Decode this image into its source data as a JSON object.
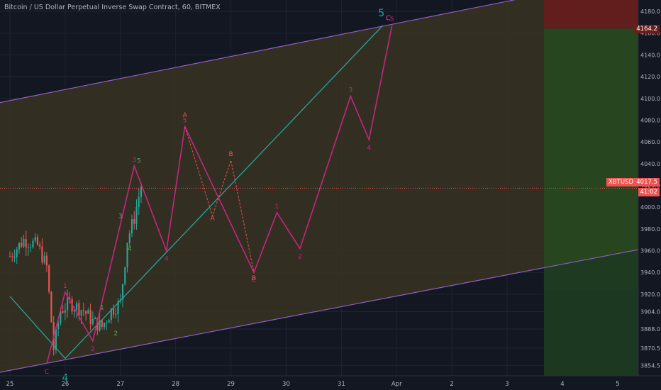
{
  "header": {
    "title": "Bitcoin / US Dollar Perpetual Inverse Swap Contract, 60, BITMEX"
  },
  "price_axis": {
    "ticks": [
      "4180.0",
      "4160.0",
      "4140.0",
      "4120.0",
      "4100.0",
      "4080.0",
      "4060.0",
      "4040.0",
      "4020.0",
      "4000.0",
      "3980.0",
      "3960.0",
      "3940.0",
      "3920.0",
      "3904.0",
      "3888.0",
      "3870.5",
      "3854.5"
    ],
    "current_price": "4017.5",
    "current_symbol": "XBTUSD",
    "countdown": "41:02",
    "target_price": "4164.2"
  },
  "time_axis": {
    "ticks": [
      "25",
      "26",
      "27",
      "28",
      "29",
      "30",
      "31",
      "Apr",
      "2",
      "3",
      "4",
      "5"
    ]
  },
  "colors": {
    "background": "#131722",
    "channel_fill": "#3a3222",
    "channel_line": "#8f5fc4",
    "primary_wave": "#26a69a",
    "secondary_wave": "#c2277e",
    "corrective_wave": "#ef5350",
    "bull_candle": "#26a69a",
    "bear_candle": "#ef5350",
    "target_zone": "#6b1f1c",
    "profit_zone": "#2a4a1e",
    "stop_zone": "#1d3a22",
    "price_line": "#ef5350"
  },
  "chart_data": {
    "type": "candlestick",
    "symbol": "XBTUSD",
    "exchange": "BITMEX",
    "interval": "60",
    "ylim": [
      3845,
      4195
    ],
    "x_range": [
      "2019-03-25T00:00",
      "2019-04-05T09:00"
    ],
    "candles_summary": {
      "segments": [
        {
          "from": "2019-03-25T00:00",
          "to": "2019-03-25T18:00",
          "range": [
            3930,
            3975
          ]
        },
        {
          "from": "2019-03-25T18:00",
          "to": "2019-03-26T00:00",
          "range": [
            3858,
            3960
          ]
        },
        {
          "from": "2019-03-26T00:00",
          "to": "2019-03-26T18:00",
          "range": [
            3878,
            3925
          ]
        },
        {
          "from": "2019-03-26T18:00",
          "to": "2019-03-27T06:00",
          "range": [
            3900,
            3998
          ]
        },
        {
          "from": "2019-03-27T06:00",
          "to": "2019-03-27T10:00",
          "range": [
            3985,
            4035
          ]
        }
      ]
    },
    "channel": {
      "upper": [
        {
          "x": "2019-03-25T00:00",
          "y": 4098
        },
        {
          "x": "2019-04-03T16:00",
          "y": 4196
        }
      ],
      "lower": [
        {
          "x": "2019-03-25T00:00",
          "y": 3850
        },
        {
          "x": "2019-04-05T09:00",
          "y": 3961
        }
      ]
    },
    "primary_wave": [
      {
        "x": "2019-03-25T00:00",
        "y": 3918
      },
      {
        "x": "2019-03-26T00:00",
        "y": 3861,
        "label": "4"
      },
      {
        "x": "2019-03-31T18:00",
        "y": 4167,
        "label": "5"
      }
    ],
    "primary_labels": [
      {
        "x": "2019-03-26T00:00",
        "y": 3852,
        "text": "4"
      },
      {
        "x": "2019-03-31T18:00",
        "y": 4173,
        "text": "5"
      },
      {
        "x": "2019-03-31T18:30",
        "y": 4170,
        "text": "C"
      }
    ],
    "secondary_wave": [
      {
        "x": "2019-03-25T16:00",
        "y": 3856,
        "label": "C"
      },
      {
        "x": "2019-03-26T00:00",
        "y": 3922,
        "label": "1"
      },
      {
        "x": "2019-03-26T12:00",
        "y": 3877,
        "label": "2"
      },
      {
        "x": "2019-03-27T06:00",
        "y": 4038,
        "label": "3"
      },
      {
        "x": "2019-03-27T20:00",
        "y": 3960,
        "label": "4"
      },
      {
        "x": "2019-03-28T04:00",
        "y": 4074,
        "label": "5"
      },
      {
        "x": "2019-03-29T10:00",
        "y": 3940,
        "label": "C"
      },
      {
        "x": "2019-03-29T20:00",
        "y": 3995,
        "label": "1"
      },
      {
        "x": "2019-03-30T06:00",
        "y": 3962,
        "label": "2"
      },
      {
        "x": "2019-03-31T04:00",
        "y": 4102,
        "label": "3"
      },
      {
        "x": "2019-03-31T12:00",
        "y": 4062,
        "label": "4"
      },
      {
        "x": "2019-03-31T22:00",
        "y": 4167,
        "label": "5"
      }
    ],
    "teal_subwave_labels": [
      {
        "x": "2019-03-26T16:00",
        "y": 3906,
        "text": "1"
      },
      {
        "x": "2019-03-26T22:00",
        "y": 3882,
        "text": "2"
      },
      {
        "x": "2019-03-27T00:00",
        "y": 3990,
        "text": "3"
      },
      {
        "x": "2019-03-27T04:00",
        "y": 3960,
        "text": "4"
      },
      {
        "x": "2019-03-27T08:00",
        "y": 4041,
        "text": "5"
      }
    ],
    "corrective_wave": [
      {
        "x": "2019-03-28T04:00",
        "y": 4074,
        "label": "A"
      },
      {
        "x": "2019-03-28T16:00",
        "y": 3992,
        "label": "A"
      },
      {
        "x": "2019-03-29T00:00",
        "y": 4043,
        "label": "B"
      },
      {
        "x": "2019-03-29T10:00",
        "y": 3940,
        "label": "B"
      }
    ],
    "corrective_labels": [
      {
        "x": "2019-03-28T04:00",
        "y": 4083,
        "text": "A"
      },
      {
        "x": "2019-03-28T16:00",
        "y": 3988,
        "text": "A"
      },
      {
        "x": "2019-03-29T00:00",
        "y": 4047,
        "text": "B"
      },
      {
        "x": "2019-03-29T10:00",
        "y": 3933,
        "text": "B"
      }
    ],
    "position": {
      "from": "2019-04-03T16:00",
      "entry": 4164.2,
      "target_top": 4195,
      "stop_bottom": 3845
    },
    "current_price": 4017.5
  }
}
